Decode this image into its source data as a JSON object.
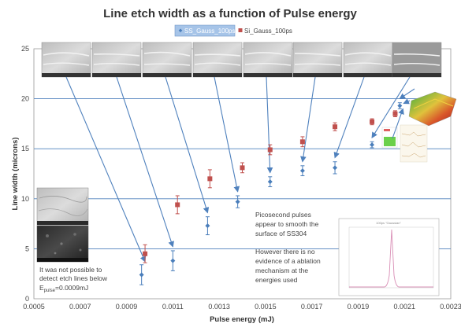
{
  "chart_data": {
    "type": "scatter",
    "title": "Line etch width as a function of Pulse energy",
    "xlabel": "Pulse energy (mJ)",
    "ylabel": "Line width (microns)",
    "xlim": [
      0.0005,
      0.0023
    ],
    "ylim": [
      0,
      25
    ],
    "x_ticks": [
      "0.0005",
      "0.0007",
      "0.0009",
      "0.0011",
      "0.0013",
      "0.0015",
      "0.0017",
      "0.0019",
      "0.0021",
      "0.0023"
    ],
    "y_ticks": [
      "0",
      "5",
      "10",
      "15",
      "20",
      "25"
    ],
    "grid": "horizontal lines at 5, 10, 15, 20",
    "legend_position": "top-center",
    "series": [
      {
        "name": "SS_Gauss_100ps",
        "marker": "diamond",
        "color": "#4a7ebb",
        "x": [
          0.000965,
          0.0011,
          0.00125,
          0.00138,
          0.00152,
          0.00166,
          0.0018,
          0.00196,
          0.00208
        ],
        "y": [
          2.4,
          3.8,
          7.3,
          9.7,
          11.7,
          12.8,
          13.1,
          15.4,
          19.3
        ],
        "err": [
          1.0,
          1.0,
          0.9,
          0.6,
          0.5,
          0.5,
          0.6,
          0.3,
          0.3
        ]
      },
      {
        "name": "Si_Gauss_100ps",
        "marker": "square",
        "color": "#c0504d",
        "x": [
          0.00098,
          0.00112,
          0.00126,
          0.0014,
          0.00152,
          0.00166,
          0.0018,
          0.00196,
          0.00206
        ],
        "y": [
          4.5,
          9.4,
          12.0,
          13.1,
          14.9,
          15.7,
          17.2,
          17.7,
          18.5
        ],
        "err": [
          0.9,
          0.9,
          0.9,
          0.5,
          0.5,
          0.5,
          0.4,
          0.3,
          0.3
        ]
      }
    ]
  },
  "annotations": {
    "etch_note_line1": "It was not possible to",
    "etch_note_line2": "detect etch lines below",
    "etch_note_line3_main": "E",
    "etch_note_line3_sub": "pulse",
    "etch_note_line3_rest": "=0.0009mJ",
    "pico_line1": "Picosecond pulses",
    "pico_line2": "appear to smooth the",
    "pico_line3": "surface of SS304",
    "ablation_line1": "However there is no",
    "ablation_line2": "evidence of a ablation",
    "ablation_line3": "mechanism at the",
    "ablation_line4": "energies used"
  },
  "inset": {
    "title": "100ps \"Gaussian\""
  },
  "colors": {
    "ss_series": "#4a7ebb",
    "si_series": "#c0504d",
    "arrows": "#4f81bd",
    "gridlines": "#4f81bd",
    "legend_bg": "#a6c4e8"
  }
}
